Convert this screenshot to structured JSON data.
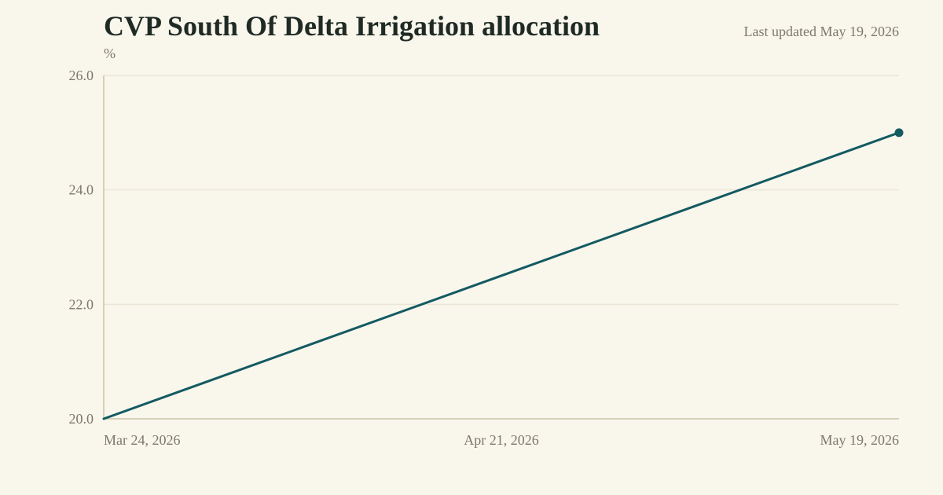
{
  "header": {
    "title": "CVP South Of Delta Irrigation allocation",
    "last_updated": "Last updated May 19, 2026"
  },
  "colors": {
    "background": "#f9f6ec",
    "line": "#135a61",
    "grid": "#ebe6d4",
    "axis": "#cbc3a8",
    "text_muted": "#7d7868",
    "title": "#1f2a24"
  },
  "chart_data": {
    "type": "line",
    "title": "CVP South Of Delta Irrigation allocation",
    "ylabel": "%",
    "xlabel": "",
    "ylim": [
      20.0,
      26.0
    ],
    "y_ticks": [
      "20.0",
      "22.0",
      "24.0",
      "26.0"
    ],
    "x_ticks": [
      "Mar 24, 2026",
      "Apr 21, 2026",
      "May 19, 2026"
    ],
    "grid": true,
    "legend": "none",
    "series": [
      {
        "x": [
          "Mar 24, 2026",
          "May 19, 2026"
        ],
        "values": [
          20.0,
          25.0
        ],
        "end_marker": true
      }
    ]
  }
}
